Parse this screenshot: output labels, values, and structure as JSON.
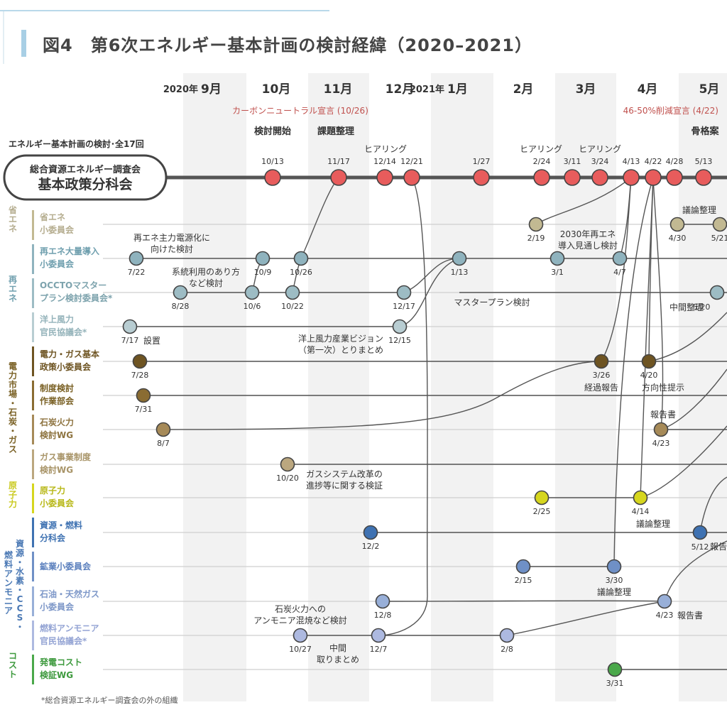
{
  "title": "図4　第6次エネルギー基本計画の検討経緯（2020–2021）",
  "months": [
    {
      "id": "m9",
      "year": "2020年",
      "label": "9月"
    },
    {
      "id": "m10",
      "year": "",
      "label": "10月"
    },
    {
      "id": "m11",
      "year": "",
      "label": "11月"
    },
    {
      "id": "m12",
      "year": "",
      "label": "12月"
    },
    {
      "id": "m1",
      "year": "2021年",
      "label": "1月"
    },
    {
      "id": "m2",
      "year": "",
      "label": "2月"
    },
    {
      "id": "m3",
      "year": "",
      "label": "3月"
    },
    {
      "id": "m4",
      "year": "",
      "label": "4月"
    },
    {
      "id": "m5",
      "year": "",
      "label": "5月"
    }
  ],
  "events": [
    {
      "id": "carbon-neutral",
      "label": "カーボンニュートラル宣言 (10/26)",
      "color": "#c0504d"
    },
    {
      "id": "reduction",
      "label": "46-50%削減宣言 (4/22)",
      "color": "#c0504d"
    }
  ],
  "phases": [
    "検討開始",
    "課題整理",
    "骨格案"
  ],
  "main": {
    "caption": "エネルギー基本計画の検討･全17回",
    "line1": "総合資源エネルギー調査会",
    "line2": "基本政策分科会",
    "color": "#e85c5c"
  },
  "categories": [
    {
      "id": "shoene",
      "label": "省エネ",
      "color": "#b5ad8f"
    },
    {
      "id": "saiene",
      "label": "再エネ",
      "color": "#6f9fae"
    },
    {
      "id": "denryoku",
      "label": "電力市場・石炭・ガス",
      "color": "#7a6125"
    },
    {
      "id": "genshiryoku",
      "label": "原子力",
      "color": "#c9c91e"
    },
    {
      "id": "shigen",
      "label": "資源・水素・CCS・燃料アンモニア",
      "color": "#4a78b4"
    },
    {
      "id": "cost",
      "label": "コスト",
      "color": "#3e9a3e"
    }
  ],
  "rows": [
    {
      "id": "shoene-sub",
      "line1": "省エネ",
      "line2": "小委員会",
      "color": "#c2b992",
      "text": "#b5ad8f"
    },
    {
      "id": "saiene-tairyo",
      "line1": "再エネ大量導入",
      "line2": "小委員会",
      "color": "#8fb3be",
      "text": "#6f9fae"
    },
    {
      "id": "occto",
      "line1": "OCCTOマスター",
      "line2": "プラン検討委員会*",
      "color": "#9dbcc4",
      "text": "#7da3ad"
    },
    {
      "id": "yojo",
      "line1": "洋上風力",
      "line2": "官民協議会*",
      "color": "#b8cdd2",
      "text": "#94b3ba"
    },
    {
      "id": "denryoku-gas",
      "line1": "電力・ガス基本",
      "line2": "政策小委員会",
      "color": "#6e5422",
      "text": "#6e5422"
    },
    {
      "id": "seido",
      "line1": "制度検討",
      "line2": "作業部会",
      "color": "#8a6c32",
      "text": "#7a6125"
    },
    {
      "id": "sekitan-wg",
      "line1": "石炭火力",
      "line2": "検討WG",
      "color": "#a68a58",
      "text": "#8e7440"
    },
    {
      "id": "gas-jigyo",
      "line1": "ガス事業制度",
      "line2": "検討WG",
      "color": "#bba77f",
      "text": "#a89468"
    },
    {
      "id": "genshiryoku-sub",
      "line1": "原子力",
      "line2": "小委員会",
      "color": "#d6d61e",
      "text": "#b8b818"
    },
    {
      "id": "shigen-nenryo",
      "line1": "資源・燃料",
      "line2": "分科会",
      "color": "#3f72b2",
      "text": "#3f72b2"
    },
    {
      "id": "kogyo",
      "line1": "鉱業小委員会",
      "line2": "",
      "color": "#6f90c6",
      "text": "#5a7fbd"
    },
    {
      "id": "sekiyu",
      "line1": "石油・天然ガス",
      "line2": "小委員会",
      "color": "#98afd8",
      "text": "#7d97c8"
    },
    {
      "id": "nenryo-ammonia",
      "line1": "燃料アンモニア",
      "line2": "官民協議会*",
      "color": "#adb9e0",
      "text": "#94a4d4"
    },
    {
      "id": "hatsuden-cost",
      "line1": "発電コスト",
      "line2": "検証WG",
      "color": "#4aa84a",
      "text": "#3e9a3e"
    }
  ],
  "meetings": [
    {
      "row": "main",
      "label": "10/13"
    },
    {
      "row": "main",
      "label": "11/17"
    },
    {
      "row": "main",
      "label": "12/14"
    },
    {
      "row": "main",
      "label": "12/21"
    },
    {
      "row": "main",
      "label": "1/27"
    },
    {
      "row": "main",
      "label": "2/24"
    },
    {
      "row": "main",
      "label": "3/11"
    },
    {
      "row": "main",
      "label": "3/24"
    },
    {
      "row": "main",
      "label": "4/13"
    },
    {
      "row": "main",
      "label": "4/22"
    },
    {
      "row": "main",
      "label": "4/28"
    },
    {
      "row": "main",
      "label": "5/13"
    },
    {
      "row": "shoene-sub",
      "label": "2/19"
    },
    {
      "row": "shoene-sub",
      "label": "4/30"
    },
    {
      "row": "shoene-sub",
      "label": "5/21"
    },
    {
      "row": "saiene-tairyo",
      "label": "7/22"
    },
    {
      "row": "saiene-tairyo",
      "label": "10/9"
    },
    {
      "row": "saiene-tairyo",
      "label": "10/26"
    },
    {
      "row": "saiene-tairyo",
      "label": "1/13"
    },
    {
      "row": "saiene-tairyo",
      "label": "3/1"
    },
    {
      "row": "saiene-tairyo",
      "label": "4/7"
    },
    {
      "row": "occto",
      "label": "8/28"
    },
    {
      "row": "occto",
      "label": "10/6"
    },
    {
      "row": "occto",
      "label": "10/22"
    },
    {
      "row": "occto",
      "label": "12/17"
    },
    {
      "row": "occto",
      "label": "5/20"
    },
    {
      "row": "yojo",
      "label": "7/17"
    },
    {
      "row": "yojo",
      "label": "12/15"
    },
    {
      "row": "denryoku-gas",
      "label": "7/28"
    },
    {
      "row": "denryoku-gas",
      "label": "3/26"
    },
    {
      "row": "denryoku-gas",
      "label": "4/20"
    },
    {
      "row": "seido",
      "label": "7/31"
    },
    {
      "row": "sekitan-wg",
      "label": "8/7"
    },
    {
      "row": "sekitan-wg",
      "label": "4/23"
    },
    {
      "row": "gas-jigyo",
      "label": "10/20"
    },
    {
      "row": "genshiryoku-sub",
      "label": "2/25"
    },
    {
      "row": "genshiryoku-sub",
      "label": "4/14"
    },
    {
      "row": "shigen-nenryo",
      "label": "12/2"
    },
    {
      "row": "shigen-nenryo",
      "label": "5/12"
    },
    {
      "row": "kogyo",
      "label": "2/15"
    },
    {
      "row": "kogyo",
      "label": "3/30"
    },
    {
      "row": "sekiyu",
      "label": "12/8"
    },
    {
      "row": "sekiyu",
      "label": "4/23"
    },
    {
      "row": "nenryo-ammonia",
      "label": "10/27"
    },
    {
      "row": "nenryo-ammonia",
      "label": "12/7"
    },
    {
      "row": "nenryo-ammonia",
      "label": "2/8"
    },
    {
      "row": "hatsuden-cost",
      "label": "3/31"
    }
  ],
  "annotations": {
    "hearing1": "ヒアリング",
    "hearing2": "ヒアリング",
    "hearing3": "ヒアリング",
    "saiene_shuryoku_1": "再エネ主力電源化に",
    "saiene_shuryoku_2": "向けた検討",
    "keito_1": "系統利用のあり方",
    "keito_2": "など検討",
    "saiene2030_1": "2030年再エネ",
    "saiene2030_2": "導入見通し検討",
    "giron_seiri_shoene": "議論整理",
    "master_plan": "マスタープラン検討",
    "chukan_seiri": "中間整理",
    "setchi": "設置",
    "yojo_vision_1": "洋上風力産業ビジョン",
    "yojo_vision_2": "（第一次）とりまとめ",
    "keika_hokoku": "経過報告",
    "hokosei": "方向性提示",
    "hokokusho_sekitan": "報告書",
    "gas_system_1": "ガスシステム改革の",
    "gas_system_2": "進捗等に関する検証",
    "giron_seiri_genshi": "議論整理",
    "hokoku_shigen": "報告",
    "giron_seiri_kogyo": "議論整理",
    "hokokusho_sekiyu": "報告書",
    "sekitan_ammonia_1": "石炭火力への",
    "sekitan_ammonia_2": "アンモニア混焼など検討",
    "chukan_torimatome_1": "中間",
    "chukan_torimatome_2": "取りまとめ"
  },
  "footnote": "*総合資源エネルギー調査会の外の組織"
}
